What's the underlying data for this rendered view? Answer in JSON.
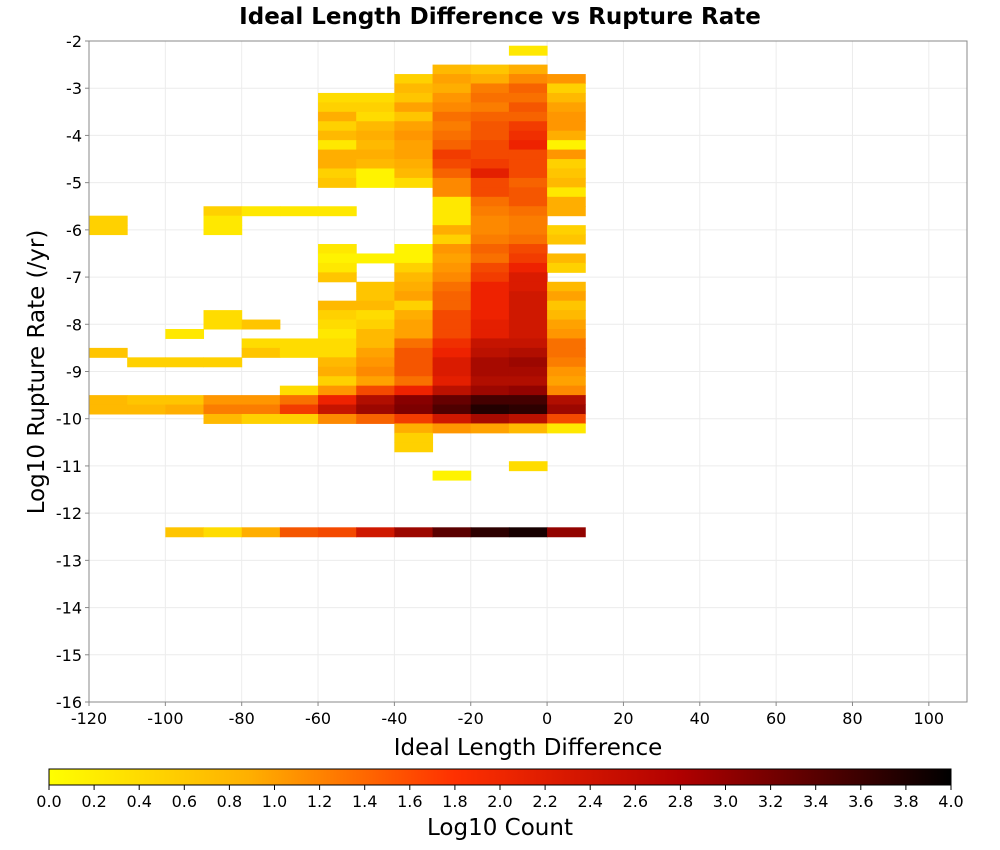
{
  "chart_data": {
    "type": "heatmap",
    "title": "Ideal Length Difference vs Rupture Rate",
    "xlabel": "Ideal Length Difference",
    "ylabel": "Log10 Rupture Rate (/yr)",
    "xlim": [
      -120,
      110
    ],
    "ylim": [
      -16,
      -2
    ],
    "x_ticks": [
      -120,
      -100,
      -80,
      -60,
      -40,
      -20,
      0,
      20,
      40,
      60,
      80,
      100
    ],
    "y_ticks": [
      -2,
      -3,
      -4,
      -5,
      -6,
      -7,
      -8,
      -9,
      -10,
      -11,
      -12,
      -13,
      -14,
      -15,
      -16
    ],
    "x_bin_width": 10,
    "y_bin_height": 0.2,
    "grid": true,
    "colorbar": {
      "label": "Log10 Count",
      "range": [
        0,
        4
      ],
      "ticks": [
        "0.0",
        "0.2",
        "0.4",
        "0.6",
        "0.8",
        "1.0",
        "1.2",
        "1.4",
        "1.6",
        "1.8",
        "2.0",
        "2.2",
        "2.4",
        "2.6",
        "2.8",
        "3.0",
        "3.2",
        "3.4",
        "3.6",
        "3.8",
        "4.0"
      ],
      "colors": [
        "#ffff00",
        "#ff9900",
        "#ee2200",
        "#880000",
        "#000000"
      ]
    },
    "cells_note": "each cell: [x_start, y_start, log10_count]",
    "cells": [
      [
        -10,
        -2.1,
        0.2
      ],
      [
        -30,
        -2.5,
        0.6
      ],
      [
        -20,
        -2.5,
        0.5
      ],
      [
        -10,
        -2.5,
        0.7
      ],
      [
        -40,
        -2.7,
        0.4
      ],
      [
        -30,
        -2.7,
        0.8
      ],
      [
        -20,
        -2.7,
        0.7
      ],
      [
        -10,
        -2.7,
        1.0
      ],
      [
        0,
        -2.7,
        0.9
      ],
      [
        -40,
        -2.9,
        0.6
      ],
      [
        -30,
        -2.9,
        0.7
      ],
      [
        -20,
        -2.9,
        1.1
      ],
      [
        -10,
        -2.9,
        1.3
      ],
      [
        0,
        -2.9,
        0.4
      ],
      [
        -60,
        -3.1,
        0.3
      ],
      [
        -50,
        -3.1,
        0.3
      ],
      [
        -40,
        -3.1,
        0.5
      ],
      [
        -30,
        -3.1,
        0.9
      ],
      [
        -20,
        -3.1,
        1.2
      ],
      [
        -10,
        -3.1,
        1.2
      ],
      [
        0,
        -3.1,
        0.6
      ],
      [
        -60,
        -3.3,
        0.4
      ],
      [
        -50,
        -3.3,
        0.4
      ],
      [
        -40,
        -3.3,
        0.8
      ],
      [
        -30,
        -3.3,
        1.0
      ],
      [
        -20,
        -3.3,
        1.1
      ],
      [
        -10,
        -3.3,
        1.4
      ],
      [
        0,
        -3.3,
        0.8
      ],
      [
        -60,
        -3.5,
        0.7
      ],
      [
        -50,
        -3.5,
        0.3
      ],
      [
        -40,
        -3.5,
        0.5
      ],
      [
        -30,
        -3.5,
        1.2
      ],
      [
        -20,
        -3.5,
        1.3
      ],
      [
        -10,
        -3.5,
        1.3
      ],
      [
        0,
        -3.5,
        0.9
      ],
      [
        -60,
        -3.7,
        0.4
      ],
      [
        -50,
        -3.7,
        0.6
      ],
      [
        -40,
        -3.7,
        0.8
      ],
      [
        -30,
        -3.7,
        1.1
      ],
      [
        -20,
        -3.7,
        1.4
      ],
      [
        -10,
        -3.7,
        1.6
      ],
      [
        0,
        -3.7,
        0.9
      ],
      [
        -60,
        -3.9,
        0.6
      ],
      [
        -50,
        -3.9,
        0.7
      ],
      [
        -40,
        -3.9,
        0.9
      ],
      [
        -30,
        -3.9,
        1.2
      ],
      [
        -20,
        -3.9,
        1.4
      ],
      [
        -10,
        -3.9,
        1.7
      ],
      [
        0,
        -3.9,
        0.7
      ],
      [
        -60,
        -4.1,
        0.2
      ],
      [
        -50,
        -4.1,
        0.6
      ],
      [
        -40,
        -4.1,
        0.8
      ],
      [
        -30,
        -4.1,
        1.3
      ],
      [
        -20,
        -4.1,
        1.5
      ],
      [
        -10,
        -4.1,
        1.8
      ],
      [
        0,
        -4.1,
        0.1
      ],
      [
        -60,
        -4.3,
        0.7
      ],
      [
        -50,
        -4.3,
        0.7
      ],
      [
        -40,
        -4.3,
        0.8
      ],
      [
        -30,
        -4.3,
        1.6
      ],
      [
        -20,
        -4.3,
        1.5
      ],
      [
        -10,
        -4.3,
        1.5
      ],
      [
        0,
        -4.3,
        0.9
      ],
      [
        -60,
        -4.5,
        0.7
      ],
      [
        -50,
        -4.5,
        0.6
      ],
      [
        -40,
        -4.5,
        0.7
      ],
      [
        -30,
        -4.5,
        1.5
      ],
      [
        -20,
        -4.5,
        1.6
      ],
      [
        -10,
        -4.5,
        1.5
      ],
      [
        0,
        -4.5,
        0.4
      ],
      [
        -60,
        -4.7,
        0.4
      ],
      [
        -50,
        -4.7,
        0.1
      ],
      [
        -40,
        -4.7,
        0.6
      ],
      [
        -30,
        -4.7,
        1.3
      ],
      [
        -20,
        -4.7,
        1.9
      ],
      [
        -10,
        -4.7,
        1.5
      ],
      [
        0,
        -4.7,
        0.5
      ],
      [
        -60,
        -4.9,
        0.5
      ],
      [
        -50,
        -4.9,
        0.1
      ],
      [
        -40,
        -4.9,
        0.3
      ],
      [
        -30,
        -4.9,
        1.0
      ],
      [
        -20,
        -4.9,
        1.5
      ],
      [
        -10,
        -4.9,
        1.3
      ],
      [
        0,
        -4.9,
        0.6
      ],
      [
        -30,
        -5.1,
        1.0
      ],
      [
        -20,
        -5.1,
        1.5
      ],
      [
        -10,
        -5.1,
        1.4
      ],
      [
        0,
        -5.1,
        0.2
      ],
      [
        -30,
        -5.3,
        0.2
      ],
      [
        -20,
        -5.3,
        1.2
      ],
      [
        -10,
        -5.3,
        1.4
      ],
      [
        0,
        -5.3,
        0.7
      ],
      [
        -90,
        -5.5,
        0.4
      ],
      [
        -80,
        -5.5,
        0.2
      ],
      [
        -70,
        -5.5,
        0.2
      ],
      [
        -60,
        -5.5,
        0.2
      ],
      [
        -30,
        -5.5,
        0.2
      ],
      [
        -20,
        -5.5,
        1.1
      ],
      [
        -10,
        -5.5,
        1.2
      ],
      [
        0,
        -5.5,
        0.7
      ],
      [
        -120,
        -5.7,
        0.4
      ],
      [
        -90,
        -5.7,
        0.2
      ],
      [
        -30,
        -5.7,
        0.2
      ],
      [
        -20,
        -5.7,
        1.0
      ],
      [
        -10,
        -5.7,
        1.1
      ],
      [
        -120,
        -5.9,
        0.4
      ],
      [
        -90,
        -5.9,
        0.2
      ],
      [
        -30,
        -5.9,
        0.7
      ],
      [
        -20,
        -5.9,
        1.0
      ],
      [
        -10,
        -5.9,
        1.1
      ],
      [
        0,
        -5.9,
        0.4
      ],
      [
        -30,
        -6.1,
        0.4
      ],
      [
        -20,
        -6.1,
        1.1
      ],
      [
        -10,
        -6.1,
        1.2
      ],
      [
        0,
        -6.1,
        0.5
      ],
      [
        -60,
        -6.3,
        0.2
      ],
      [
        -40,
        -6.3,
        0.1
      ],
      [
        -30,
        -6.3,
        0.9
      ],
      [
        -20,
        -6.3,
        1.3
      ],
      [
        -10,
        -6.3,
        1.5
      ],
      [
        -60,
        -6.5,
        0.1
      ],
      [
        -50,
        -6.5,
        0.1
      ],
      [
        -40,
        -6.5,
        0.1
      ],
      [
        -30,
        -6.5,
        0.8
      ],
      [
        -20,
        -6.5,
        1.2
      ],
      [
        -10,
        -6.5,
        1.6
      ],
      [
        0,
        -6.5,
        0.6
      ],
      [
        -60,
        -6.7,
        0.2
      ],
      [
        -40,
        -6.7,
        0.4
      ],
      [
        -30,
        -6.7,
        0.9
      ],
      [
        -20,
        -6.7,
        1.5
      ],
      [
        -10,
        -6.7,
        1.8
      ],
      [
        0,
        -6.7,
        0.4
      ],
      [
        -60,
        -6.9,
        0.5
      ],
      [
        -40,
        -6.9,
        0.6
      ],
      [
        -30,
        -6.9,
        1.0
      ],
      [
        -20,
        -6.9,
        1.6
      ],
      [
        -10,
        -6.9,
        2.0
      ],
      [
        -50,
        -7.1,
        0.5
      ],
      [
        -40,
        -7.1,
        0.7
      ],
      [
        -30,
        -7.1,
        1.2
      ],
      [
        -20,
        -7.1,
        1.8
      ],
      [
        -10,
        -7.1,
        2.0
      ],
      [
        0,
        -7.1,
        0.6
      ],
      [
        -50,
        -7.3,
        0.5
      ],
      [
        -40,
        -7.3,
        0.8
      ],
      [
        -30,
        -7.3,
        1.3
      ],
      [
        -20,
        -7.3,
        1.8
      ],
      [
        -10,
        -7.3,
        2.1
      ],
      [
        0,
        -7.3,
        0.8
      ],
      [
        -60,
        -7.5,
        0.6
      ],
      [
        -50,
        -7.5,
        0.6
      ],
      [
        -40,
        -7.5,
        0.4
      ],
      [
        -30,
        -7.5,
        1.3
      ],
      [
        -20,
        -7.5,
        1.8
      ],
      [
        -10,
        -7.5,
        2.1
      ],
      [
        0,
        -7.5,
        0.5
      ],
      [
        -90,
        -7.7,
        0.3
      ],
      [
        -60,
        -7.7,
        0.4
      ],
      [
        -50,
        -7.7,
        0.3
      ],
      [
        -40,
        -7.7,
        0.7
      ],
      [
        -30,
        -7.7,
        1.5
      ],
      [
        -20,
        -7.7,
        1.8
      ],
      [
        -10,
        -7.7,
        2.1
      ],
      [
        0,
        -7.7,
        0.6
      ],
      [
        -90,
        -7.9,
        0.3
      ],
      [
        -80,
        -7.9,
        0.5
      ],
      [
        -60,
        -7.9,
        0.3
      ],
      [
        -50,
        -7.9,
        0.4
      ],
      [
        -40,
        -7.9,
        0.8
      ],
      [
        -30,
        -7.9,
        1.5
      ],
      [
        -20,
        -7.9,
        1.9
      ],
      [
        -10,
        -7.9,
        2.1
      ],
      [
        0,
        -7.9,
        0.8
      ],
      [
        -100,
        -8.1,
        0.2
      ],
      [
        -60,
        -8.1,
        0.2
      ],
      [
        -50,
        -8.1,
        0.6
      ],
      [
        -40,
        -8.1,
        0.8
      ],
      [
        -30,
        -8.1,
        1.5
      ],
      [
        -20,
        -8.1,
        1.9
      ],
      [
        -10,
        -8.1,
        2.1
      ],
      [
        0,
        -8.1,
        0.9
      ],
      [
        -80,
        -8.3,
        0.3
      ],
      [
        -70,
        -8.3,
        0.3
      ],
      [
        -60,
        -8.3,
        0.3
      ],
      [
        -50,
        -8.3,
        0.6
      ],
      [
        -40,
        -8.3,
        1.2
      ],
      [
        -30,
        -8.3,
        1.7
      ],
      [
        -20,
        -8.3,
        2.2
      ],
      [
        -10,
        -8.3,
        2.2
      ],
      [
        0,
        -8.3,
        1.2
      ],
      [
        -120,
        -8.5,
        0.5
      ],
      [
        -80,
        -8.5,
        0.5
      ],
      [
        -70,
        -8.5,
        0.3
      ],
      [
        -60,
        -8.5,
        0.3
      ],
      [
        -50,
        -8.5,
        0.8
      ],
      [
        -40,
        -8.5,
        1.4
      ],
      [
        -30,
        -8.5,
        1.8
      ],
      [
        -20,
        -8.5,
        2.3
      ],
      [
        -10,
        -8.5,
        2.4
      ],
      [
        0,
        -8.5,
        1.2
      ],
      [
        -110,
        -8.7,
        0.4
      ],
      [
        -100,
        -8.7,
        0.4
      ],
      [
        -90,
        -8.7,
        0.4
      ],
      [
        -60,
        -8.7,
        0.6
      ],
      [
        -50,
        -8.7,
        0.9
      ],
      [
        -40,
        -8.7,
        1.4
      ],
      [
        -30,
        -8.7,
        2.0
      ],
      [
        -20,
        -8.7,
        2.5
      ],
      [
        -10,
        -8.7,
        2.6
      ],
      [
        0,
        -8.7,
        1.1
      ],
      [
        -60,
        -8.9,
        0.7
      ],
      [
        -50,
        -8.9,
        1.0
      ],
      [
        -40,
        -8.9,
        1.4
      ],
      [
        -30,
        -8.9,
        2.0
      ],
      [
        -20,
        -8.9,
        2.5
      ],
      [
        -10,
        -8.9,
        2.5
      ],
      [
        0,
        -8.9,
        0.9
      ],
      [
        -60,
        -9.1,
        0.4
      ],
      [
        -50,
        -9.1,
        0.8
      ],
      [
        -40,
        -9.1,
        1.2
      ],
      [
        -30,
        -9.1,
        1.9
      ],
      [
        -20,
        -9.1,
        2.4
      ],
      [
        -10,
        -9.1,
        2.4
      ],
      [
        0,
        -9.1,
        0.8
      ],
      [
        -70,
        -9.3,
        0.3
      ],
      [
        -60,
        -9.3,
        0.9
      ],
      [
        -50,
        -9.3,
        1.5
      ],
      [
        -40,
        -9.3,
        1.8
      ],
      [
        -30,
        -9.3,
        2.3
      ],
      [
        -20,
        -9.3,
        2.6
      ],
      [
        -10,
        -9.3,
        2.7
      ],
      [
        0,
        -9.3,
        1.0
      ],
      [
        -120,
        -9.5,
        0.6
      ],
      [
        -110,
        -9.5,
        0.5
      ],
      [
        -100,
        -9.5,
        0.5
      ],
      [
        -90,
        -9.5,
        0.9
      ],
      [
        -80,
        -9.5,
        0.9
      ],
      [
        -70,
        -9.5,
        1.2
      ],
      [
        -60,
        -9.5,
        1.8
      ],
      [
        -50,
        -9.5,
        2.4
      ],
      [
        -40,
        -9.5,
        2.8
      ],
      [
        -30,
        -9.5,
        3.1
      ],
      [
        -20,
        -9.5,
        3.4
      ],
      [
        -10,
        -9.5,
        3.4
      ],
      [
        0,
        -9.5,
        2.4
      ],
      [
        -120,
        -9.7,
        0.6
      ],
      [
        -110,
        -9.7,
        0.6
      ],
      [
        -100,
        -9.7,
        0.7
      ],
      [
        -90,
        -9.7,
        1.1
      ],
      [
        -80,
        -9.7,
        1.1
      ],
      [
        -70,
        -9.7,
        1.6
      ],
      [
        -60,
        -9.7,
        2.2
      ],
      [
        -50,
        -9.7,
        2.6
      ],
      [
        -40,
        -9.7,
        2.9
      ],
      [
        -30,
        -9.7,
        3.3
      ],
      [
        -20,
        -9.7,
        3.7
      ],
      [
        -10,
        -9.7,
        3.6
      ],
      [
        0,
        -9.7,
        2.6
      ],
      [
        -90,
        -9.9,
        0.6
      ],
      [
        -80,
        -9.9,
        0.4
      ],
      [
        -70,
        -9.9,
        0.4
      ],
      [
        -60,
        -9.9,
        1.0
      ],
      [
        -50,
        -9.9,
        1.3
      ],
      [
        -40,
        -9.9,
        1.6
      ],
      [
        -30,
        -9.9,
        2.1
      ],
      [
        -20,
        -9.9,
        2.5
      ],
      [
        -10,
        -9.9,
        2.3
      ],
      [
        0,
        -9.9,
        1.5
      ],
      [
        -40,
        -10.1,
        0.7
      ],
      [
        -30,
        -10.1,
        0.9
      ],
      [
        -20,
        -10.1,
        0.8
      ],
      [
        -10,
        -10.1,
        0.6
      ],
      [
        0,
        -10.1,
        0.2
      ],
      [
        -40,
        -10.3,
        0.4
      ],
      [
        -40,
        -10.5,
        0.4
      ],
      [
        -10,
        -10.9,
        0.3
      ],
      [
        -30,
        -11.1,
        0.1
      ],
      [
        -100,
        -12.3,
        0.5
      ],
      [
        -90,
        -12.3,
        0.3
      ],
      [
        -80,
        -12.3,
        0.7
      ],
      [
        -70,
        -12.3,
        1.4
      ],
      [
        -60,
        -12.3,
        1.5
      ],
      [
        -50,
        -12.3,
        2.1
      ],
      [
        -40,
        -12.3,
        2.6
      ],
      [
        -30,
        -12.3,
        3.2
      ],
      [
        -20,
        -12.3,
        3.6
      ],
      [
        -10,
        -12.3,
        3.8
      ],
      [
        0,
        -12.3,
        2.7
      ]
    ]
  }
}
